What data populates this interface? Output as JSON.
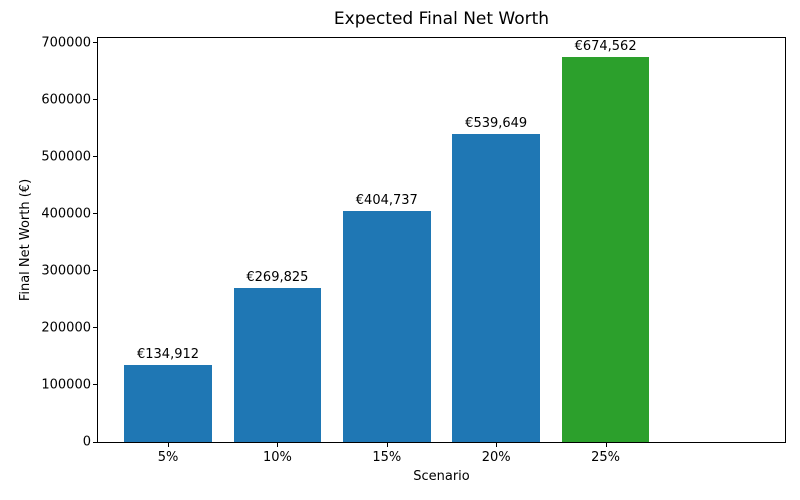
{
  "chart_data": {
    "type": "bar",
    "title": "Expected Final Net Worth",
    "xlabel": "Scenario",
    "ylabel": "Final Net Worth (€)",
    "categories": [
      "5%",
      "10%",
      "15%",
      "20%",
      "25%"
    ],
    "values": [
      134912,
      269825,
      404737,
      539649,
      674562
    ],
    "bar_labels": [
      "€134,912",
      "€269,825",
      "€404,737",
      "€539,649",
      "€674,562"
    ],
    "bar_colors": [
      "#1f77b4",
      "#1f77b4",
      "#1f77b4",
      "#1f77b4",
      "#2ca02c"
    ],
    "yticks": [
      0,
      100000,
      200000,
      300000,
      400000,
      500000,
      600000,
      700000
    ],
    "ytick_labels": [
      "0",
      "100000",
      "200000",
      "300000",
      "400000",
      "500000",
      "600000",
      "700000"
    ],
    "ylim": [
      0,
      708290
    ],
    "grid": false,
    "legend_position": "none",
    "colors": {
      "default_bar": "#1f77b4",
      "highlight_bar": "#2ca02c",
      "axis": "#000000",
      "background": "#ffffff"
    }
  }
}
